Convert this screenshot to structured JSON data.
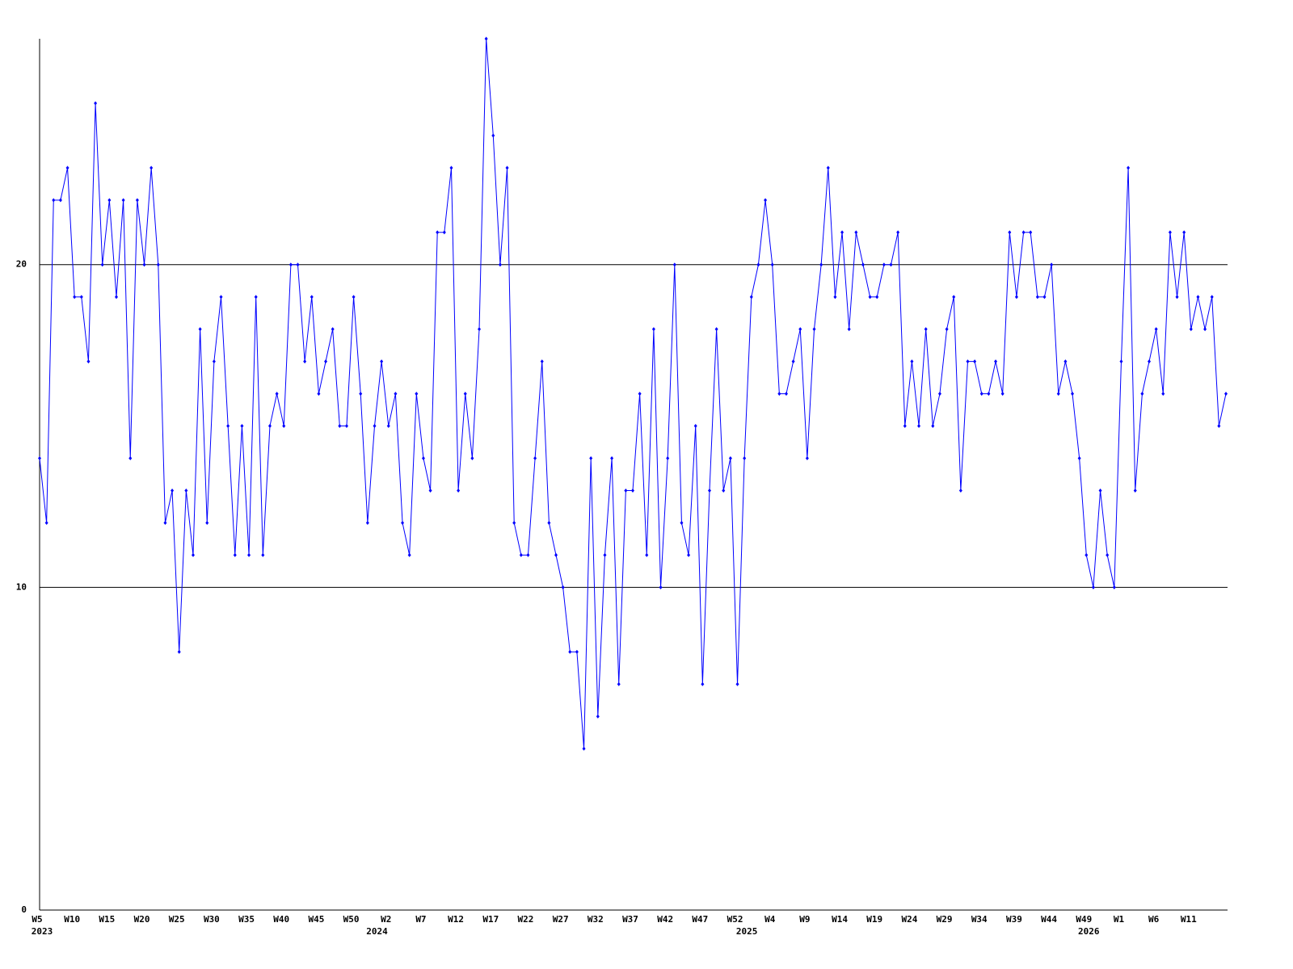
{
  "chart_data": {
    "type": "line",
    "categories": [
      "W5",
      null,
      null,
      null,
      null,
      "W10",
      null,
      null,
      null,
      null,
      "W15",
      null,
      null,
      null,
      null,
      "W20",
      null,
      null,
      null,
      null,
      "W25",
      null,
      null,
      null,
      null,
      "W30",
      null,
      null,
      null,
      null,
      "W35",
      null,
      null,
      null,
      null,
      "W40",
      null,
      null,
      null,
      null,
      "W45",
      null,
      null,
      null,
      null,
      "W50",
      null,
      null,
      null,
      null,
      "W2",
      null,
      null,
      null,
      null,
      "W7",
      null,
      null,
      null,
      null,
      "W12",
      null,
      null,
      null,
      null,
      "W17",
      null,
      null,
      null,
      null,
      "W22",
      null,
      null,
      null,
      null,
      "W27",
      null,
      null,
      null,
      null,
      "W32",
      null,
      null,
      null,
      null,
      "W37",
      null,
      null,
      null,
      null,
      "W42",
      null,
      null,
      null,
      null,
      "W47",
      null,
      null,
      null,
      null,
      "W52",
      null,
      null,
      null,
      null,
      "W4",
      null,
      null,
      null,
      null,
      "W9",
      null,
      null,
      null,
      null,
      "W14",
      null,
      null,
      null,
      null,
      "W19",
      null,
      null,
      null,
      null,
      "W24",
      null,
      null,
      null,
      null,
      "W29",
      null,
      null,
      null,
      null,
      "W34",
      null,
      null,
      null,
      null,
      "W39",
      null,
      null,
      null,
      null,
      "W44",
      null,
      null,
      null,
      null,
      "W49",
      null,
      null,
      null,
      null,
      "W1",
      null,
      null,
      null,
      null,
      "W6",
      null,
      null,
      null,
      null,
      "W11",
      null,
      null,
      null,
      null,
      null
    ],
    "years": [
      "2023",
      null,
      null,
      null,
      null,
      null,
      null,
      null,
      null,
      null,
      null,
      null,
      null,
      null,
      null,
      null,
      null,
      null,
      null,
      null,
      null,
      null,
      null,
      null,
      null,
      null,
      null,
      null,
      null,
      null,
      null,
      null,
      null,
      null,
      null,
      null,
      null,
      null,
      null,
      null,
      null,
      null,
      null,
      null,
      null,
      null,
      null,
      null,
      "2024",
      null,
      null,
      null,
      null,
      null,
      null,
      null,
      null,
      null,
      null,
      null,
      null,
      null,
      null,
      null,
      null,
      null,
      null,
      null,
      null,
      null,
      null,
      null,
      null,
      null,
      null,
      null,
      null,
      null,
      null,
      null,
      null,
      null,
      null,
      null,
      null,
      null,
      null,
      null,
      null,
      null,
      null,
      null,
      null,
      null,
      null,
      null,
      null,
      null,
      null,
      null,
      null,
      "2025",
      null,
      null,
      null,
      null,
      null,
      null,
      null,
      null,
      null,
      null,
      null,
      null,
      null,
      null,
      null,
      null,
      null,
      null,
      null,
      null,
      null,
      null,
      null,
      null,
      null,
      null,
      null,
      null,
      null,
      null,
      null,
      null,
      null,
      null,
      null,
      null,
      null,
      null,
      null,
      null,
      null,
      null,
      null,
      null,
      null,
      null,
      null,
      null,
      "2026",
      null,
      null,
      null,
      null,
      null,
      null,
      null,
      null,
      null,
      null,
      null,
      null,
      null,
      null,
      null,
      null
    ],
    "series": [
      {
        "color": "#0000ff",
        "values": [
          14,
          12,
          22,
          22,
          23,
          19,
          19,
          17,
          25,
          20,
          22,
          19,
          22,
          14,
          22,
          20,
          23,
          20,
          12,
          13,
          8,
          13,
          11,
          18,
          12,
          17,
          19,
          15,
          11,
          15,
          11,
          19,
          11,
          15,
          16,
          15,
          20,
          20,
          17,
          19,
          16,
          17,
          18,
          15,
          15,
          19,
          16,
          12,
          15,
          17,
          15,
          16,
          12,
          11,
          16,
          14,
          13,
          21,
          21,
          23,
          13,
          16,
          14,
          18,
          27,
          24,
          20,
          23,
          12,
          11,
          11,
          14,
          17,
          12,
          11,
          10,
          8,
          8,
          5,
          14,
          6,
          11,
          14,
          7,
          13,
          13,
          16,
          11,
          18,
          10,
          14,
          20,
          12,
          11,
          15,
          7,
          13,
          18,
          13,
          14,
          7,
          14,
          19,
          20,
          22,
          20,
          16,
          16,
          17,
          18,
          14,
          18,
          20,
          23,
          19,
          21,
          18,
          21,
          20,
          19,
          19,
          20,
          20,
          21,
          15,
          17,
          15,
          18,
          15,
          16,
          18,
          19,
          13,
          17,
          17,
          16,
          16,
          17,
          16,
          21,
          19,
          21,
          21,
          19,
          19,
          20,
          16,
          17,
          16,
          14,
          11,
          10,
          13,
          11,
          10,
          17,
          23,
          13,
          16,
          17,
          18,
          16,
          21,
          19,
          21,
          18,
          19,
          18,
          19,
          15,
          16
        ]
      }
    ],
    "ylim": [
      0,
      27
    ],
    "yticks": [
      0,
      10,
      20
    ],
    "grid": true
  }
}
